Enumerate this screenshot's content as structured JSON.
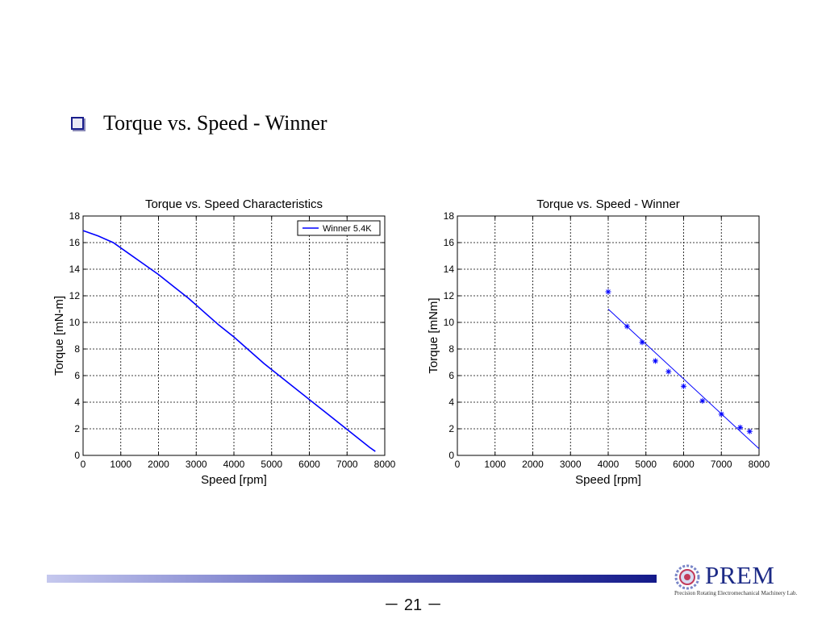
{
  "slide": {
    "title": "Torque vs. Speed - Winner",
    "page_number": "－ 21 －"
  },
  "logo": {
    "name": "PREM",
    "subtitle": "Precision Rotating Electromechanical Machinery Lab."
  },
  "colors": {
    "series": "#0000ff",
    "bullet": "#1a1f8c",
    "footer_bar_dark": "#141a8a",
    "footer_bar_light": "#c5c8ee",
    "logo_text": "#1c2a86"
  },
  "chart_data": [
    {
      "type": "line",
      "title": "Torque vs. Speed Characteristics",
      "xlabel": "Speed [rpm]",
      "ylabel": "Torque [mN-m]",
      "xlim": [
        0,
        8000
      ],
      "ylim": [
        0,
        18
      ],
      "xticks": [
        0,
        1000,
        2000,
        3000,
        4000,
        5000,
        6000,
        7000,
        8000
      ],
      "yticks": [
        0,
        2,
        4,
        6,
        8,
        10,
        12,
        14,
        16,
        18
      ],
      "grid": true,
      "legend": "top-right",
      "series": [
        {
          "name": "Winner 5.4K",
          "style": "line",
          "x": [
            0,
            400,
            800,
            1200,
            1600,
            2000,
            2400,
            2800,
            3200,
            3600,
            4000,
            4400,
            4800,
            5200,
            5600,
            6000,
            6400,
            6800,
            7200,
            7600,
            7750
          ],
          "y": [
            16.9,
            16.5,
            16.0,
            15.2,
            14.4,
            13.6,
            12.7,
            11.8,
            10.8,
            9.8,
            8.9,
            7.9,
            6.9,
            6.0,
            5.1,
            4.2,
            3.3,
            2.4,
            1.5,
            0.6,
            0.3
          ]
        }
      ]
    },
    {
      "type": "scatter",
      "title": "Torque vs. Speed - Winner",
      "xlabel": "Speed [rpm]",
      "ylabel": "Torque [mNm]",
      "xlim": [
        0,
        8000
      ],
      "ylim": [
        0,
        18
      ],
      "xticks": [
        0,
        1000,
        2000,
        3000,
        4000,
        5000,
        6000,
        7000,
        8000
      ],
      "yticks": [
        0,
        2,
        4,
        6,
        8,
        10,
        12,
        14,
        16,
        18
      ],
      "grid": true,
      "series": [
        {
          "style": "markers",
          "x": [
            4000,
            4500,
            4900,
            5250,
            5600,
            6000,
            6500,
            7000,
            7500,
            7750
          ],
          "y": [
            12.3,
            9.7,
            8.5,
            7.1,
            6.3,
            5.2,
            4.1,
            3.1,
            2.1,
            1.8
          ]
        },
        {
          "style": "line",
          "x": [
            4000,
            8000
          ],
          "y": [
            11.0,
            0.5
          ]
        }
      ]
    }
  ]
}
